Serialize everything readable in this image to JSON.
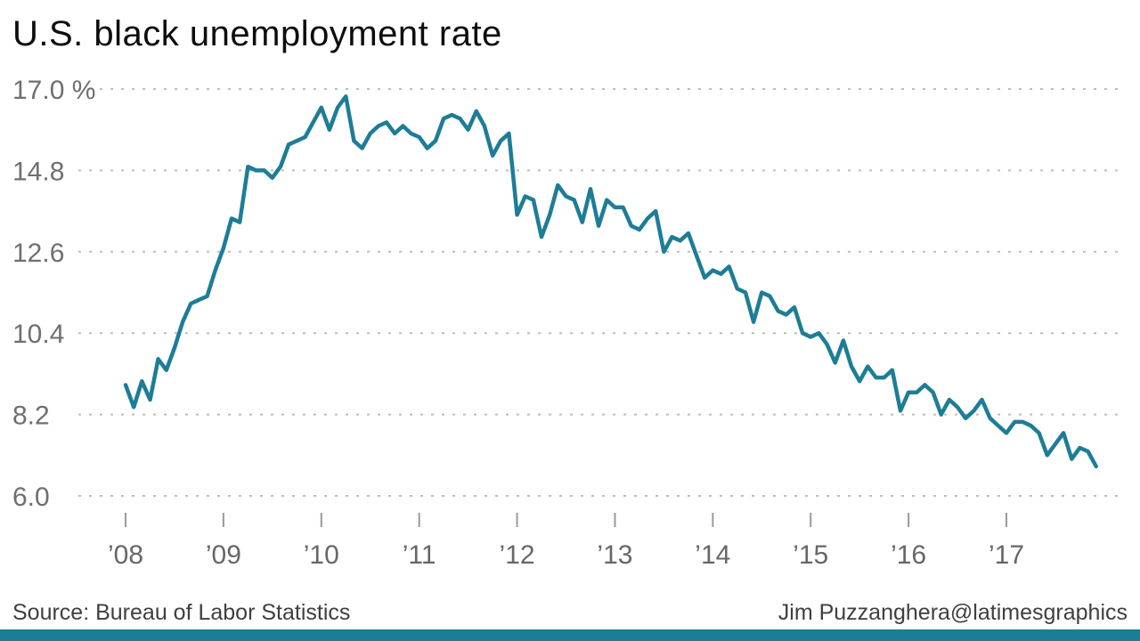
{
  "title": "U.S. black unemployment rate",
  "footer": {
    "source": "Source: Bureau of Labor Statistics",
    "credit": "Jim Puzzanghera@latimesgraphics"
  },
  "colors": {
    "line": "#1d7d97",
    "accent_bar": "#1d7d97",
    "grid": "#bdbdbd",
    "axis_text": "#6f6f6f"
  },
  "chart_data": {
    "type": "line",
    "title": "U.S. black unemployment rate",
    "unit": "%",
    "frequency": "monthly",
    "x_start_label": "Jan 2008",
    "x_end_label": "Dec 2017",
    "ylim": [
      6.0,
      17.0
    ],
    "yticks": [
      17.0,
      14.8,
      12.6,
      10.4,
      8.2,
      6.0
    ],
    "ytick_labels": [
      "17.0 %",
      "14.8",
      "12.6",
      "10.4",
      "8.2",
      "6.0"
    ],
    "xtick_labels": [
      "’08",
      "’09",
      "’10",
      "’11",
      "’12",
      "’13",
      "’14",
      "’15",
      "’16",
      "’17"
    ],
    "grid": "dashed-horizontal",
    "legend": "none",
    "values": [
      9.0,
      8.4,
      9.1,
      8.6,
      9.7,
      9.4,
      10.0,
      10.7,
      11.2,
      11.3,
      11.4,
      12.1,
      12.7,
      13.5,
      13.4,
      14.9,
      14.8,
      14.8,
      14.6,
      14.9,
      15.5,
      15.6,
      15.7,
      16.1,
      16.5,
      15.9,
      16.5,
      16.8,
      15.6,
      15.4,
      15.8,
      16.0,
      16.1,
      15.8,
      16.0,
      15.8,
      15.7,
      15.4,
      15.6,
      16.2,
      16.3,
      16.2,
      15.9,
      16.4,
      16.0,
      15.2,
      15.6,
      15.8,
      13.6,
      14.1,
      14.0,
      13.0,
      13.6,
      14.4,
      14.1,
      14.0,
      13.4,
      14.3,
      13.3,
      14.0,
      13.8,
      13.8,
      13.3,
      13.2,
      13.5,
      13.7,
      12.6,
      13.0,
      12.9,
      13.1,
      12.5,
      11.9,
      12.1,
      12.0,
      12.2,
      11.6,
      11.5,
      10.7,
      11.5,
      11.4,
      11.0,
      10.9,
      11.1,
      10.4,
      10.3,
      10.4,
      10.1,
      9.6,
      10.2,
      9.5,
      9.1,
      9.5,
      9.2,
      9.2,
      9.4,
      8.3,
      8.8,
      8.8,
      9.0,
      8.8,
      8.2,
      8.6,
      8.4,
      8.1,
      8.3,
      8.6,
      8.1,
      7.9,
      7.7,
      8.0,
      8.0,
      7.9,
      7.7,
      7.1,
      7.4,
      7.7,
      7.0,
      7.3,
      7.2,
      6.8
    ]
  }
}
